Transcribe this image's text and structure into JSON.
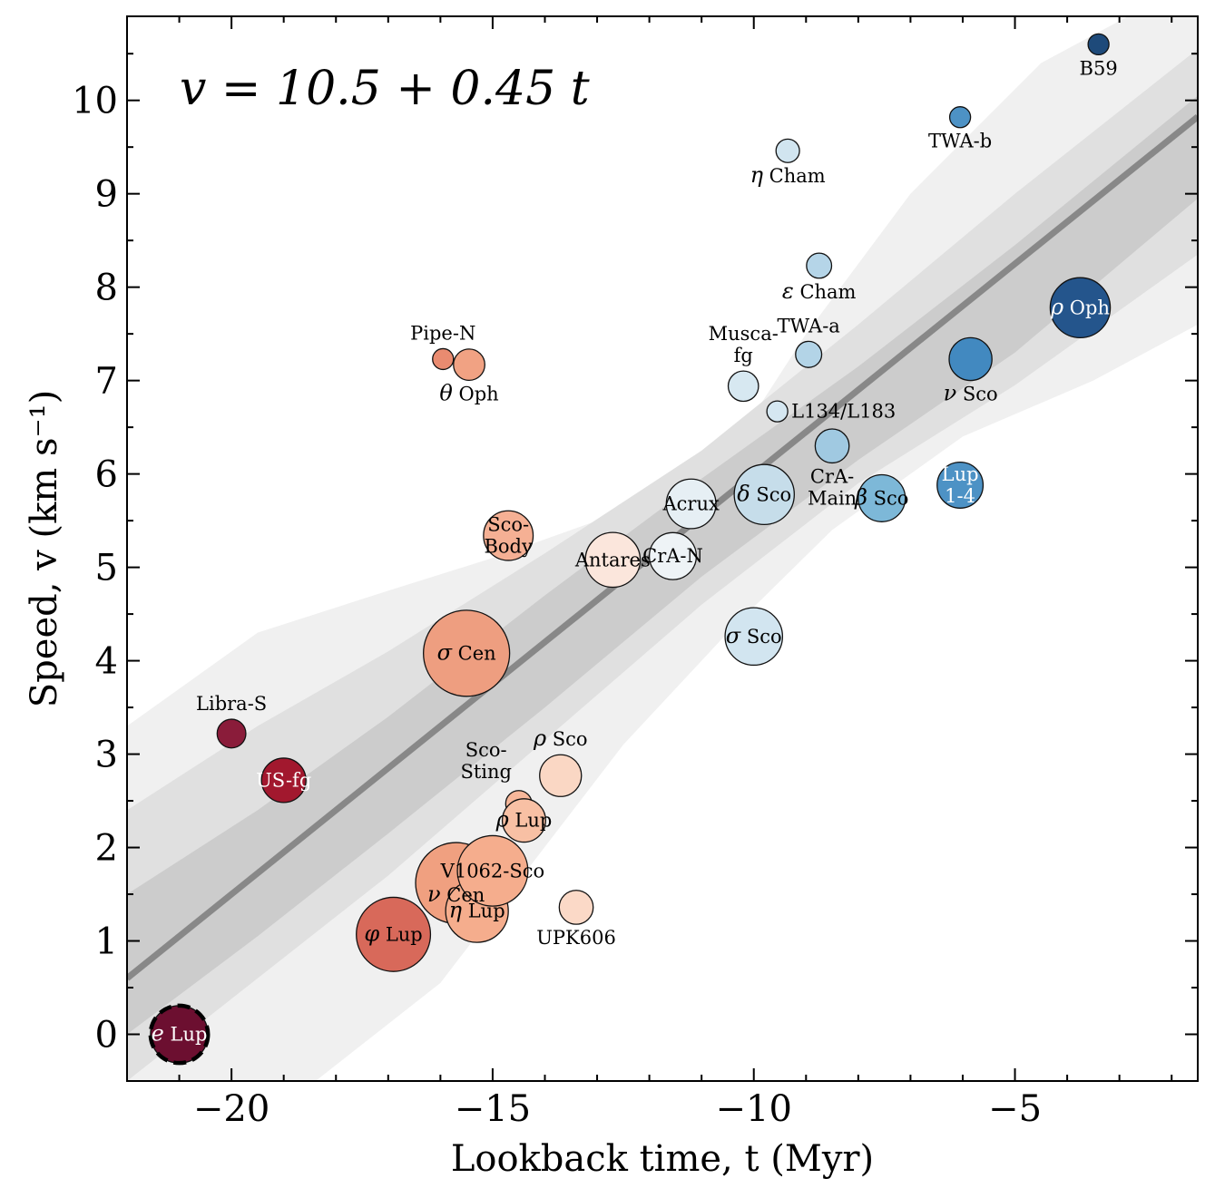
{
  "chart_data": {
    "type": "scatter",
    "title": "",
    "equation": "v = 10.5 + 0.45 t",
    "xlabel": "Lookback time, t (Myr)",
    "ylabel": "Speed, v (km s⁻¹)",
    "xlim": [
      -22.0,
      -1.5
    ],
    "ylim": [
      -0.5,
      10.9
    ],
    "xticks": [
      -20,
      -15,
      -10,
      -5
    ],
    "xtick_labels": [
      "−20",
      "−15",
      "−10",
      "−5"
    ],
    "yticks": [
      0,
      1,
      2,
      3,
      4,
      5,
      6,
      7,
      8,
      9,
      10
    ],
    "ytick_labels": [
      "0",
      "1",
      "2",
      "3",
      "4",
      "5",
      "6",
      "7",
      "8",
      "9",
      "10"
    ],
    "fit": {
      "intercept": 10.5,
      "slope": 0.45
    },
    "bands": [
      {
        "name": "outer",
        "lower": [
          [
            -22,
            -0.9
          ],
          [
            -19.3,
            -0.9
          ],
          [
            -16,
            0.55
          ],
          [
            -12.5,
            3.1
          ],
          [
            -10.5,
            4.3
          ],
          [
            -8.5,
            5.4
          ],
          [
            -6,
            6.4
          ],
          [
            -3.5,
            7.0
          ],
          [
            -1.5,
            7.6
          ]
        ],
        "upper": [
          [
            -22,
            3.3
          ],
          [
            -19.5,
            4.3
          ],
          [
            -17,
            4.75
          ],
          [
            -15,
            5.1
          ],
          [
            -13,
            5.5
          ],
          [
            -10.5,
            6.2
          ],
          [
            -9,
            7.5
          ],
          [
            -7,
            9.0
          ],
          [
            -4.5,
            10.4
          ],
          [
            -1.5,
            11.3
          ]
        ]
      },
      {
        "name": "middle",
        "lower": [
          [
            -22,
            -0.5
          ],
          [
            -19.5,
            0.6
          ],
          [
            -17,
            1.7
          ],
          [
            -14,
            3.15
          ],
          [
            -11,
            4.6
          ],
          [
            -8,
            5.9
          ],
          [
            -5,
            6.95
          ],
          [
            -1.5,
            8.35
          ]
        ],
        "upper": [
          [
            -22,
            2.4
          ],
          [
            -19.5,
            3.3
          ],
          [
            -17,
            4.1
          ],
          [
            -14,
            5.15
          ],
          [
            -11,
            6.25
          ],
          [
            -8,
            7.6
          ],
          [
            -5,
            9.0
          ],
          [
            -1.5,
            10.55
          ]
        ]
      },
      {
        "name": "inner",
        "lower": [
          [
            -22,
            0.0
          ],
          [
            -19.5,
            1.05
          ],
          [
            -17,
            2.15
          ],
          [
            -14,
            3.5
          ],
          [
            -11,
            4.9
          ],
          [
            -8,
            6.15
          ],
          [
            -5,
            7.3
          ],
          [
            -1.5,
            8.95
          ]
        ],
        "upper": [
          [
            -22,
            1.5
          ],
          [
            -19.5,
            2.4
          ],
          [
            -17,
            3.4
          ],
          [
            -14,
            4.7
          ],
          [
            -11,
            5.95
          ],
          [
            -8,
            7.15
          ],
          [
            -5,
            8.45
          ],
          [
            -1.5,
            10.05
          ]
        ]
      }
    ],
    "points": [
      {
        "name": "e Lup",
        "greek": "e",
        "rest": " Lup",
        "x": -21.0,
        "y": 0.0,
        "r": 1.1,
        "color": "#6c0f30",
        "label_pos": "center",
        "label_color": "#ffffff",
        "dashed": true
      },
      {
        "name": "Libra-S",
        "x": -20.0,
        "y": 3.22,
        "r": 0.55,
        "color": "#8a1c3a",
        "label_pos": "above"
      },
      {
        "name": "US-fg",
        "x": -19.0,
        "y": 2.72,
        "r": 0.85,
        "color": "#a2182e",
        "label_pos": "center",
        "label_color": "#ffffff"
      },
      {
        "name": "φ Lup",
        "greek": "φ",
        "rest": " Lup",
        "x": -16.9,
        "y": 1.07,
        "r": 1.42,
        "color": "#d8695a",
        "label_pos": "center"
      },
      {
        "name": "σ Cen",
        "greek": "σ",
        "rest": " Cen",
        "x": -15.5,
        "y": 4.08,
        "r": 1.65,
        "color": "#ee9e80",
        "label_pos": "center"
      },
      {
        "name": "Pipe-N",
        "x": -15.95,
        "y": 7.23,
        "r": 0.4,
        "color": "#e98b70",
        "label_pos": "above"
      },
      {
        "name": "θ Oph",
        "greek": "θ",
        "rest": " Oph",
        "x": -15.45,
        "y": 7.17,
        "r": 0.6,
        "color": "#f1a283",
        "label_pos": "below"
      },
      {
        "name": "ν Cen",
        "greek": "ν",
        "rest": " Cen",
        "x": -15.7,
        "y": 1.62,
        "r": 1.55,
        "color": "#f0a080",
        "label_pos": "center",
        "label_dy": -0.13
      },
      {
        "name": "η Lup",
        "greek": "η",
        "rest": " Lup",
        "x": -15.3,
        "y": 1.32,
        "r": 1.2,
        "color": "#f5ad8d",
        "label_pos": "center"
      },
      {
        "name": "V1062-Sco",
        "x": -15.0,
        "y": 1.75,
        "r": 1.35,
        "color": "#f5ad8d",
        "label_pos": "center"
      },
      {
        "name": "Sco-Sting",
        "x": -14.5,
        "y": 2.47,
        "r": 0.5,
        "color": "#f7b79a",
        "label_pos": "above-left",
        "label_lines": [
          "Sco-",
          "Sting"
        ]
      },
      {
        "name": "ρ Lup",
        "greek": "ρ",
        "rest": " Lup",
        "x": -14.4,
        "y": 2.29,
        "r": 0.83,
        "color": "#f8c0a4",
        "label_pos": "center"
      },
      {
        "name": "ρ Sco",
        "greek": "ρ",
        "rest": " Sco",
        "x": -13.7,
        "y": 2.77,
        "r": 0.8,
        "color": "#fad7c4",
        "label_pos": "above"
      },
      {
        "name": "UPK606",
        "x": -13.4,
        "y": 1.36,
        "r": 0.65,
        "color": "#fbd9c7",
        "label_pos": "below"
      },
      {
        "name": "Sco-Body",
        "x": -14.7,
        "y": 5.34,
        "r": 0.95,
        "color": "#f5b094",
        "label_pos": "center",
        "label_lines": [
          "Sco-",
          "Body"
        ]
      },
      {
        "name": "Antares",
        "x": -12.7,
        "y": 5.08,
        "r": 1.05,
        "color": "#fbe6dc",
        "label_pos": "center"
      },
      {
        "name": "CrA-N",
        "x": -11.55,
        "y": 5.12,
        "r": 0.9,
        "color": "#eef3f6",
        "label_pos": "center"
      },
      {
        "name": "Acrux",
        "x": -11.2,
        "y": 5.68,
        "r": 0.95,
        "color": "#e6eff4",
        "label_pos": "center"
      },
      {
        "name": "σ Sco",
        "greek": "σ",
        "rest": " Sco",
        "x": -10.0,
        "y": 4.26,
        "r": 1.1,
        "color": "#d2e5f0",
        "label_pos": "center"
      },
      {
        "name": "δ Sco",
        "greek": "δ",
        "rest": " Sco",
        "x": -9.8,
        "y": 5.78,
        "r": 1.15,
        "color": "#c6ddea",
        "label_pos": "center"
      },
      {
        "name": "Musca-fg",
        "x": -10.2,
        "y": 6.94,
        "r": 0.58,
        "color": "#d7e8f1",
        "label_pos": "above",
        "label_lines": [
          "Musca-",
          "fg"
        ]
      },
      {
        "name": "L134/L183",
        "x": -9.55,
        "y": 6.67,
        "r": 0.4,
        "color": "#d5e7f1",
        "label_pos": "right"
      },
      {
        "name": "η Cham",
        "greek": "η",
        "rest": " Cham",
        "x": -9.35,
        "y": 9.46,
        "r": 0.45,
        "color": "#d1e5f0",
        "label_pos": "below"
      },
      {
        "name": "ε Cham",
        "greek": "ε",
        "rest": " Cham",
        "x": -8.75,
        "y": 8.23,
        "r": 0.48,
        "color": "#b5d5e8",
        "label_pos": "below"
      },
      {
        "name": "TWA-a",
        "x": -8.95,
        "y": 7.28,
        "r": 0.5,
        "color": "#b3d4e7",
        "label_pos": "above"
      },
      {
        "name": "CrA-Main",
        "x": -8.5,
        "y": 6.3,
        "r": 0.65,
        "color": "#a0c9e1",
        "label_pos": "below",
        "label_lines": [
          "CrA-",
          "Main"
        ]
      },
      {
        "name": "β Sco",
        "greek": "β",
        "rest": " Sco",
        "x": -7.55,
        "y": 5.74,
        "r": 0.9,
        "color": "#7db8d8",
        "label_pos": "center"
      },
      {
        "name": "Lup 1-4",
        "x": -6.05,
        "y": 5.88,
        "r": 0.88,
        "color": "#4d92c5",
        "label_pos": "center",
        "label_color": "#ffffff",
        "label_lines": [
          "Lup",
          "1-4"
        ]
      },
      {
        "name": "ν Sco",
        "greek": "ν",
        "rest": " Sco",
        "x": -5.85,
        "y": 7.23,
        "r": 0.82,
        "color": "#4289c0",
        "label_pos": "below"
      },
      {
        "name": "TWA-b",
        "x": -6.05,
        "y": 9.82,
        "r": 0.4,
        "color": "#4d92c5",
        "label_pos": "below"
      },
      {
        "name": "ρ Oph",
        "greek": "ρ",
        "rest": " Oph",
        "x": -3.75,
        "y": 7.78,
        "r": 1.15,
        "color": "#24558c",
        "label_pos": "center",
        "label_color": "#ffffff"
      },
      {
        "name": "B59",
        "x": -3.4,
        "y": 10.6,
        "r": 0.4,
        "color": "#1e4a7a",
        "label_pos": "below"
      }
    ]
  }
}
